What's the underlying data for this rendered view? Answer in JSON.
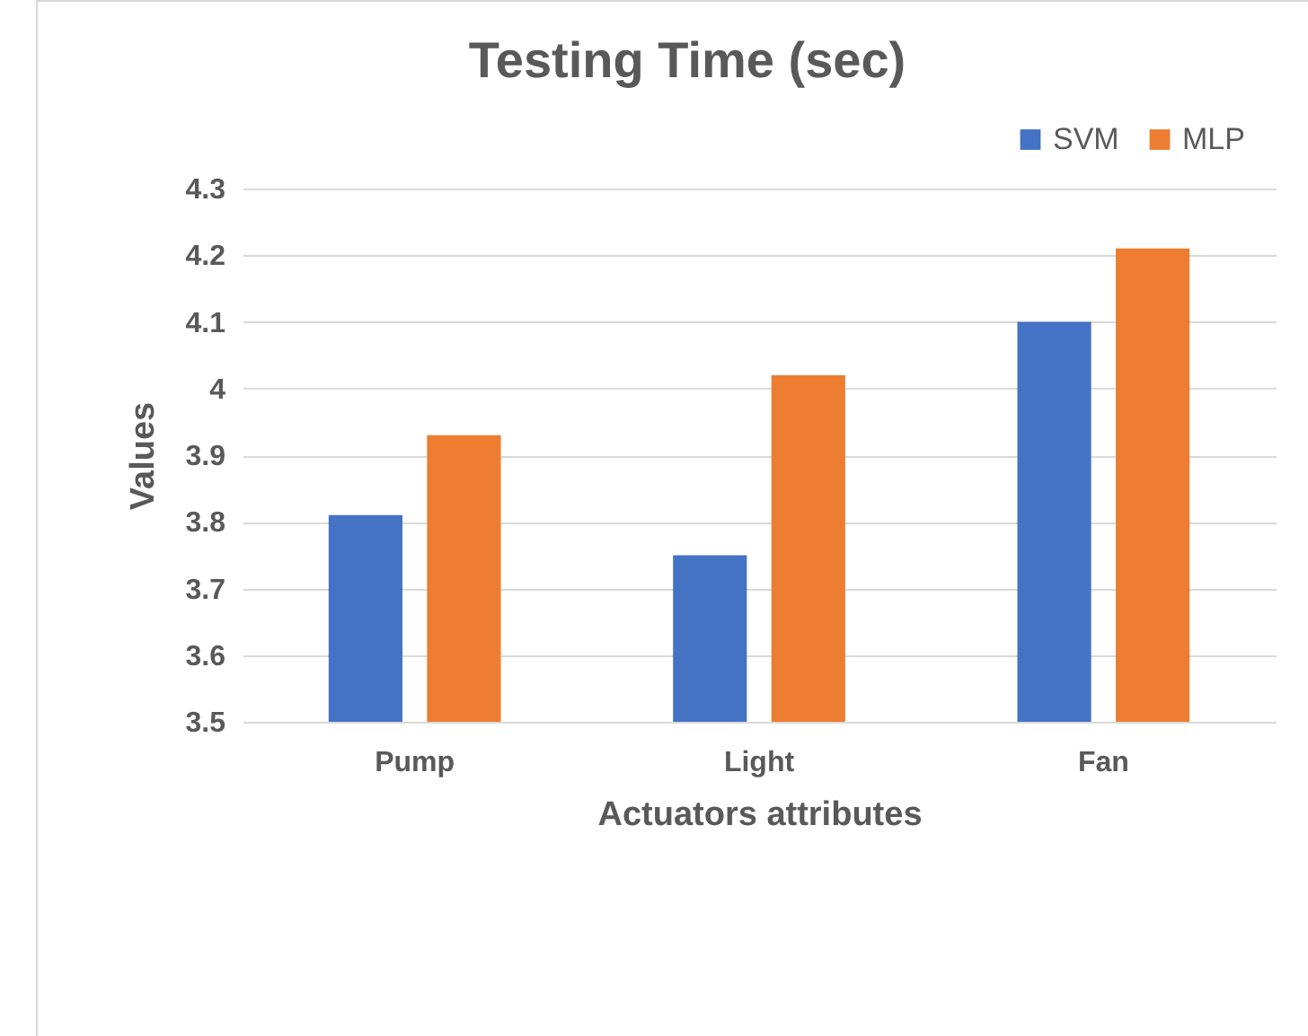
{
  "chart_data": {
    "type": "bar",
    "title": "Testing Time (sec)",
    "xlabel": "Actuators attributes",
    "ylabel": "Values",
    "categories": [
      "Pump",
      "Light",
      "Fan"
    ],
    "series": [
      {
        "name": "SVM",
        "color": "#4472c4",
        "values": [
          3.81,
          3.75,
          4.1
        ]
      },
      {
        "name": "MLP",
        "color": "#ed7d31",
        "values": [
          3.93,
          4.02,
          4.21
        ]
      }
    ],
    "ylim": [
      3.5,
      4.3
    ],
    "yticks": [
      3.5,
      3.6,
      3.7,
      3.8,
      3.9,
      4,
      4.1,
      4.2,
      4.3
    ],
    "grid": "y",
    "legend": "top right"
  }
}
